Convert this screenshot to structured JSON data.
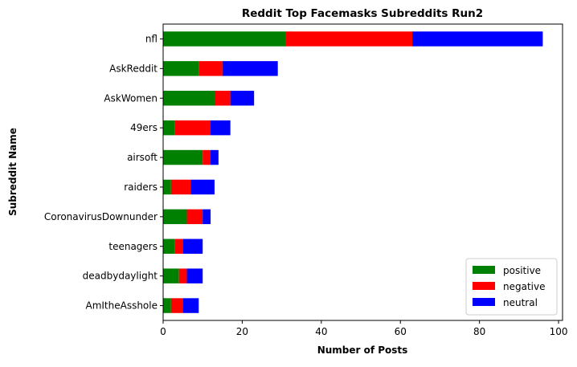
{
  "chart_data": {
    "type": "bar",
    "orientation": "horizontal",
    "stacked": true,
    "title": "Reddit Top Facemasks Subreddits Run2",
    "xlabel": "Number of Posts",
    "ylabel": "Subreddit Name",
    "categories": [
      "nfl",
      "AskReddit",
      "AskWomen",
      "49ers",
      "airsoft",
      "raiders",
      "CoronavirusDownunder",
      "teenagers",
      "deadbydaylight",
      "AmItheAsshole"
    ],
    "series": [
      {
        "name": "positive",
        "color": "#008000",
        "values": [
          31,
          9,
          13,
          3,
          10,
          2,
          6,
          3,
          4,
          2
        ]
      },
      {
        "name": "negative",
        "color": "#ff0000",
        "values": [
          32,
          6,
          4,
          9,
          2,
          5,
          4,
          2,
          2,
          3
        ]
      },
      {
        "name": "neutral",
        "color": "#0000ff",
        "values": [
          33,
          14,
          6,
          5,
          2,
          6,
          2,
          5,
          4,
          4
        ]
      }
    ],
    "xlim": [
      0,
      101
    ],
    "xticks": [
      0,
      20,
      40,
      60,
      80,
      100
    ],
    "grid": false,
    "legend_position": "lower-right"
  }
}
